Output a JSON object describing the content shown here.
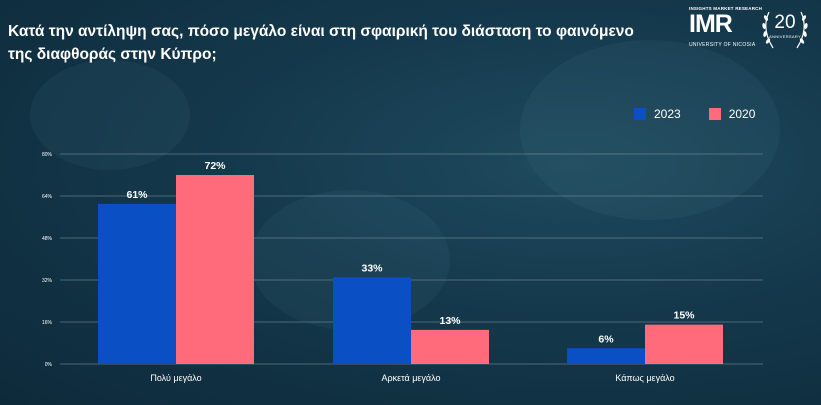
{
  "header": {
    "title": "Κατά την αντίληψη σας, πόσο μεγάλο είναι στη σφαιρική του διάσταση το φαινόμενο της διαφθοράς στην Κύπρο;"
  },
  "logo": {
    "tagline": "INSIGHTS MARKET RESEARCH",
    "mark": "IMR",
    "university": "UNIVERSITY OF NICOSIA",
    "badge_number": "20",
    "badge_sub": "ANNIVERSARY"
  },
  "colors": {
    "series_2023": "#0a4fc4",
    "series_2020": "#ff6b7a",
    "grid": "#7f97a3"
  },
  "chart_data": {
    "type": "bar",
    "categories": [
      "Πολύ μεγάλο",
      "Αρκετά μεγάλο",
      "Κάπως μεγάλο"
    ],
    "series": [
      {
        "name": "2023",
        "values": [
          61,
          33,
          6
        ],
        "labels": [
          "61%",
          "33%",
          "6%"
        ],
        "color": "#0a4fc4"
      },
      {
        "name": "2020",
        "values": [
          72,
          13,
          15
        ],
        "labels": [
          "72%",
          "13%",
          "15%"
        ],
        "color": "#ff6b7a"
      }
    ],
    "yticks": [
      "0%",
      "16%",
      "32%",
      "48%",
      "64%",
      "80%"
    ],
    "ylim": [
      0,
      80
    ],
    "grid": true,
    "legend": "top-right",
    "xlabel": "",
    "ylabel": ""
  }
}
